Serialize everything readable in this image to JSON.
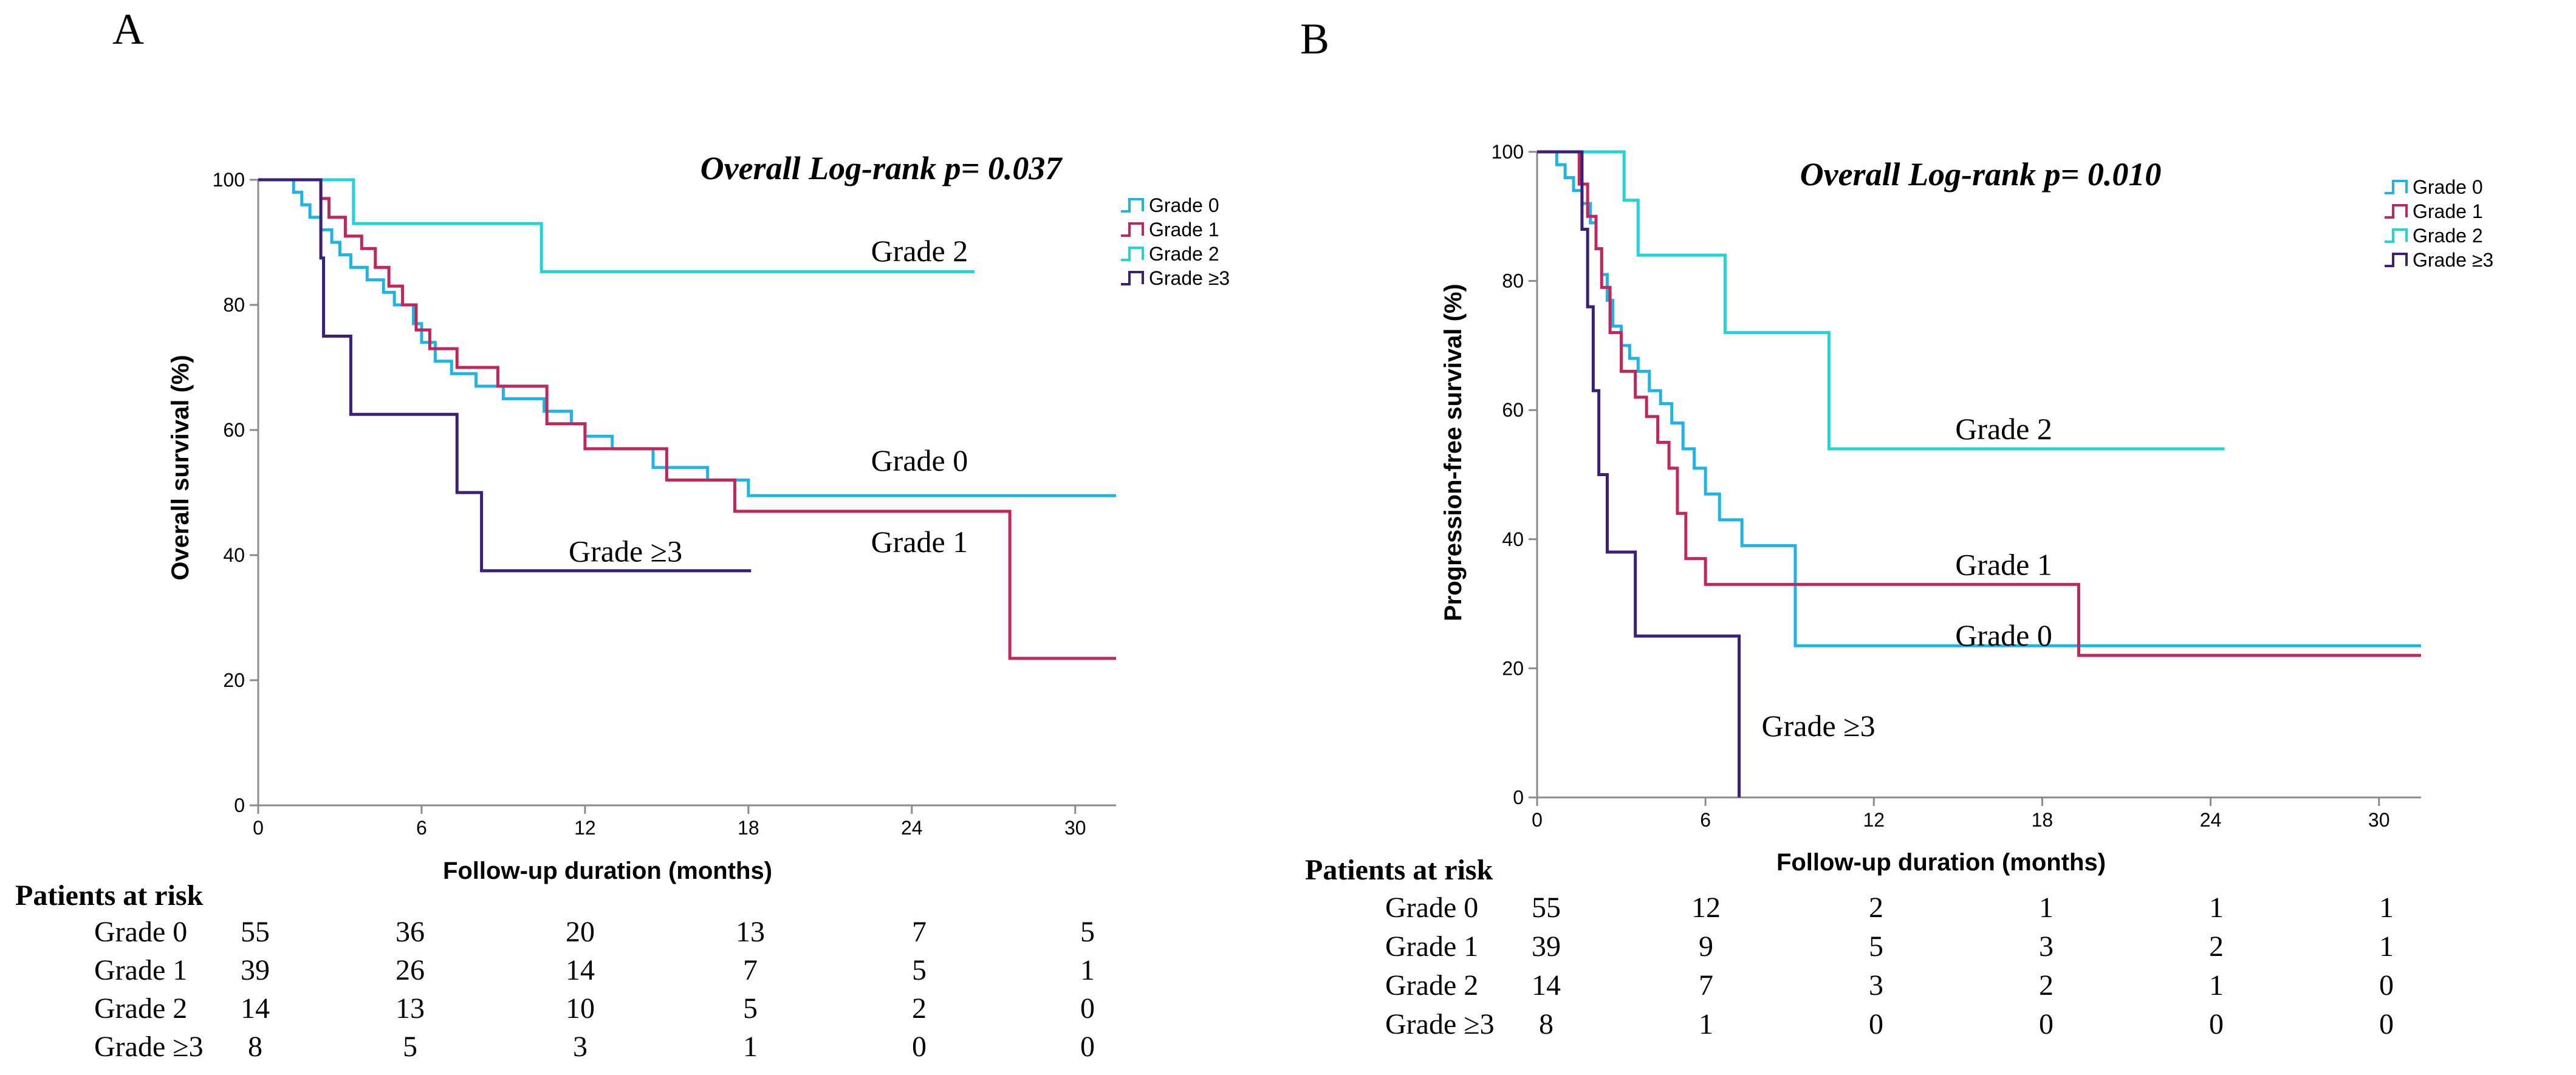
{
  "figure": {
    "colors": {
      "grade0": "#1fb3e6",
      "grade1": "#c0275a",
      "grade2": "#22d3d7",
      "grade3": "#3b1f7a",
      "axis": "#8a8a8a",
      "text": "#000000"
    }
  },
  "chart_data": [
    {
      "panel_label": "A",
      "type": "line",
      "curve_style": "step",
      "title": "Overall Log-rank p= 0.037",
      "xlabel": "Follow-up duration (months)",
      "ylabel": "Overall survival (%)",
      "xlim": [
        0,
        31.5
      ],
      "ylim": [
        0,
        100
      ],
      "xticks": [
        0,
        6,
        12,
        18,
        24,
        30
      ],
      "yticks": [
        0,
        20,
        40,
        60,
        80,
        100
      ],
      "legend": [
        "Grade 0",
        "Grade 1",
        "Grade 2",
        "Grade ≥3"
      ],
      "series": [
        {
          "name": "Grade 0",
          "color_key": "grade0",
          "end_label": "Grade 0",
          "label_at": [
            22.5,
            53.5
          ],
          "x": [
            0,
            1.3,
            1.6,
            1.9,
            2.3,
            2.7,
            3.0,
            3.4,
            4.0,
            4.6,
            5.0,
            5.7,
            6.0,
            6.5,
            7.1,
            8.0,
            9.0,
            10.5,
            11.5,
            12.0,
            13.0,
            14.5,
            16.5,
            18.0,
            31.5
          ],
          "y": [
            100,
            98,
            96,
            94,
            92,
            90,
            88,
            86,
            84,
            82,
            80,
            77,
            74,
            71,
            69,
            67,
            65,
            63,
            61,
            59,
            57,
            54,
            52,
            49.5,
            49.5
          ]
        },
        {
          "name": "Grade 1",
          "color_key": "grade1",
          "end_label": "Grade 1",
          "label_at": [
            22.5,
            40.5
          ],
          "x": [
            0,
            2.3,
            2.6,
            3.2,
            3.8,
            4.3,
            4.8,
            5.3,
            5.8,
            6.3,
            7.3,
            8.8,
            10.6,
            12.0,
            15.0,
            17.5,
            27.6,
            31.5
          ],
          "y": [
            100,
            97,
            94,
            91,
            89,
            86,
            83,
            80,
            76,
            73,
            70,
            67,
            61,
            57,
            52,
            47,
            23.5,
            23.5
          ]
        },
        {
          "name": "Grade 2",
          "color_key": "grade2",
          "end_label": "Grade 2",
          "label_at": [
            22.5,
            87
          ],
          "x": [
            0,
            3.5,
            10.4,
            26.3
          ],
          "y": [
            100,
            93,
            85.3,
            85.3
          ]
        },
        {
          "name": "Grade ≥3",
          "color_key": "grade3",
          "end_label": "Grade ≥3",
          "label_at": [
            11.4,
            39
          ],
          "x": [
            0,
            2.3,
            2.4,
            3.4,
            7.3,
            8.2,
            18.1
          ],
          "y": [
            100,
            87.5,
            75,
            62.5,
            50,
            37.5,
            37.5
          ]
        }
      ]
    },
    {
      "panel_label": "B",
      "type": "line",
      "curve_style": "step",
      "title": "Overall Log-rank p= 0.010",
      "xlabel": "Follow-up duration (months)",
      "ylabel": "Progression-free survival (%)",
      "xlim": [
        0,
        31.5
      ],
      "ylim": [
        0,
        100
      ],
      "xticks": [
        0,
        6,
        12,
        18,
        24,
        30
      ],
      "yticks": [
        0,
        20,
        40,
        60,
        80,
        100
      ],
      "legend": [
        "Grade 0",
        "Grade 1",
        "Grade 2",
        "Grade ≥3"
      ],
      "series": [
        {
          "name": "Grade 0",
          "color_key": "grade0",
          "end_label": "Grade 0",
          "label_at": [
            14.9,
            23.5
          ],
          "x": [
            0,
            0.7,
            1.0,
            1.3,
            1.6,
            1.9,
            2.1,
            2.3,
            2.5,
            2.7,
            3.0,
            3.3,
            3.6,
            4.0,
            4.4,
            4.8,
            5.2,
            5.6,
            6.0,
            6.5,
            7.3,
            9.2,
            31.5
          ],
          "y": [
            100,
            98,
            96,
            94,
            92,
            89,
            85,
            81,
            77,
            73,
            70,
            68,
            66,
            63,
            61,
            58,
            54,
            51,
            47,
            43,
            39,
            23.5,
            23.5
          ]
        },
        {
          "name": "Grade 1",
          "color_key": "grade1",
          "end_label": "Grade 1",
          "label_at": [
            14.9,
            34.5
          ],
          "x": [
            0,
            1.5,
            1.8,
            2.1,
            2.3,
            2.6,
            3.0,
            3.5,
            3.9,
            4.3,
            4.7,
            5.0,
            5.3,
            6.0,
            19.3,
            31.5
          ],
          "y": [
            100,
            95,
            90,
            85,
            79,
            72,
            66,
            62,
            59,
            55,
            51,
            44,
            37,
            33,
            22,
            22
          ]
        },
        {
          "name": "Grade 2",
          "color_key": "grade2",
          "end_label": "Grade 2",
          "label_at": [
            14.9,
            55.5
          ],
          "x": [
            0,
            3.1,
            3.6,
            6.7,
            10.4,
            24.5
          ],
          "y": [
            100,
            92.5,
            84,
            72,
            54,
            54
          ]
        },
        {
          "name": "Grade ≥3",
          "color_key": "grade3",
          "end_label": "Grade ≥3",
          "label_at": [
            8.0,
            9.5
          ],
          "x": [
            0,
            1.6,
            1.8,
            2.0,
            2.2,
            2.5,
            3.0,
            3.5,
            7.2,
            7.2
          ],
          "y": [
            100,
            88,
            76,
            63,
            50,
            38,
            38,
            25,
            25,
            0
          ]
        }
      ]
    }
  ],
  "risk_tables": [
    {
      "heading": "Patients at risk",
      "rows": [
        {
          "label": "Grade 0",
          "values": [
            "55",
            "36",
            "20",
            "13",
            "7",
            "5"
          ]
        },
        {
          "label": "Grade 1",
          "values": [
            "39",
            "26",
            "14",
            "7",
            "5",
            "1"
          ]
        },
        {
          "label": "Grade 2",
          "values": [
            "14",
            "13",
            "10",
            "5",
            "2",
            "0"
          ]
        },
        {
          "label": "Grade ≥3",
          "values": [
            "8",
            "5",
            "3",
            "1",
            "0",
            "0"
          ]
        }
      ]
    },
    {
      "heading": "Patients at risk",
      "rows": [
        {
          "label": "Grade 0",
          "values": [
            "55",
            "12",
            "2",
            "1",
            "1",
            "1"
          ]
        },
        {
          "label": "Grade 1",
          "values": [
            "39",
            "9",
            "5",
            "3",
            "2",
            "1"
          ]
        },
        {
          "label": "Grade 2",
          "values": [
            "14",
            "7",
            "3",
            "2",
            "1",
            "0"
          ]
        },
        {
          "label": "Grade ≥3",
          "values": [
            "8",
            "1",
            "0",
            "0",
            "0",
            "0"
          ]
        }
      ]
    }
  ]
}
